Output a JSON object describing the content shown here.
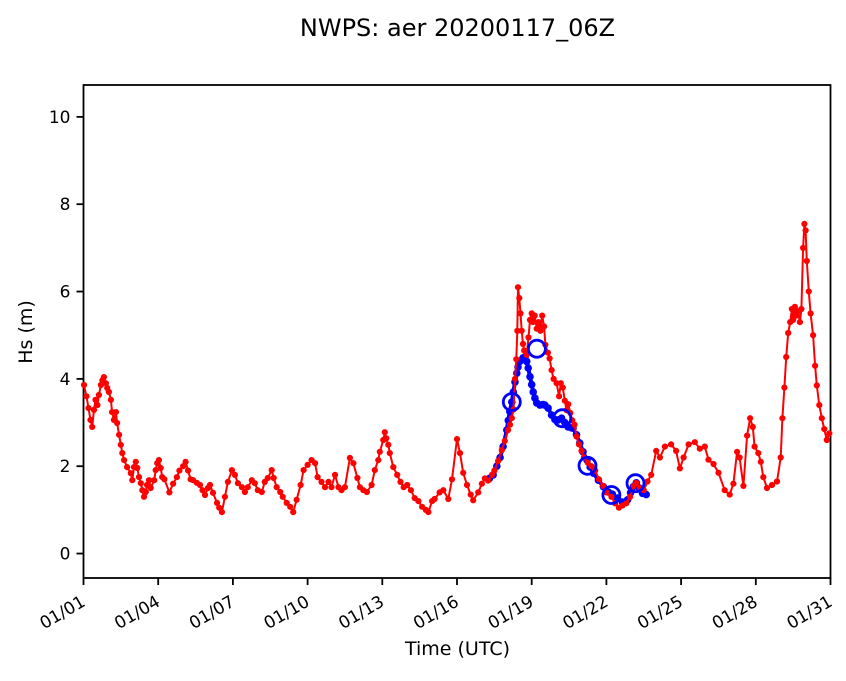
{
  "title": "NWPS: aer 20200117_06Z",
  "colors": {
    "observed": "#ff0000",
    "forecast": "#0000ff",
    "cycle_marker": "#0000ff",
    "axis": "#000000",
    "background": "#ffffff"
  },
  "chart_data": {
    "type": "line",
    "title": "NWPS: aer 20200117_06Z",
    "xlabel": "Time (UTC)",
    "ylabel": "Hs (m)",
    "grid": false,
    "legend": "none",
    "x_unit_note": "x values are days since 01/01 00:00 UTC",
    "xlim": [
      0,
      30
    ],
    "ylim": [
      -0.56,
      10.73
    ],
    "x_tick_days": [
      0,
      3,
      6,
      9,
      12,
      15,
      18,
      21,
      24,
      27,
      30
    ],
    "x_tick_labels": [
      "01/01",
      "01/04",
      "01/07",
      "01/10",
      "01/13",
      "01/16",
      "01/19",
      "01/22",
      "01/25",
      "01/28",
      "01/31"
    ],
    "x_tick_label_rotation_deg": 30,
    "y_ticks": [
      0,
      2,
      4,
      6,
      8,
      10
    ],
    "y_tick_labels": [
      "0",
      "2",
      "4",
      "6",
      "8",
      "10"
    ],
    "series": [
      {
        "name": "observed-hs",
        "color": "#ff0000",
        "marker": "dot",
        "marker_radius": 3.1,
        "line_width": 2,
        "x": [
          0.02,
          0.12,
          0.2,
          0.28,
          0.35,
          0.42,
          0.48,
          0.56,
          0.62,
          0.7,
          0.76,
          0.82,
          0.9,
          0.95,
          1.02,
          1.1,
          1.15,
          1.22,
          1.3,
          1.35,
          1.43,
          1.5,
          1.56,
          1.63,
          1.75,
          1.9,
          1.96,
          2.03,
          2.1,
          2.16,
          2.23,
          2.3,
          2.36,
          2.43,
          2.5,
          2.55,
          2.63,
          2.7,
          2.84,
          2.9,
          2.96,
          3.03,
          3.1,
          3.16,
          3.25,
          3.45,
          3.6,
          3.75,
          3.85,
          4.0,
          4.1,
          4.2,
          4.3,
          4.4,
          4.55,
          4.68,
          4.78,
          4.88,
          5.0,
          5.08,
          5.2,
          5.36,
          5.45,
          5.56,
          5.68,
          5.8,
          5.96,
          6.08,
          6.2,
          6.36,
          6.48,
          6.6,
          6.76,
          6.88,
          7.0,
          7.16,
          7.28,
          7.4,
          7.56,
          7.64,
          7.76,
          7.9,
          8.0,
          8.16,
          8.3,
          8.42,
          8.56,
          8.72,
          8.84,
          9.0,
          9.16,
          9.3,
          9.4,
          9.56,
          9.7,
          9.84,
          9.96,
          10.1,
          10.24,
          10.36,
          10.5,
          10.7,
          10.84,
          11.0,
          11.1,
          11.24,
          11.38,
          11.57,
          11.7,
          11.84,
          11.9,
          12.04,
          12.1,
          12.16,
          12.24,
          12.3,
          12.44,
          12.6,
          12.73,
          12.86,
          13.0,
          13.15,
          13.3,
          13.45,
          13.6,
          13.75,
          13.85,
          14.0,
          14.1,
          14.3,
          14.45,
          14.65,
          14.8,
          15.0,
          15.12,
          15.25,
          15.4,
          15.55,
          15.65,
          15.85,
          16.0,
          16.12,
          16.25,
          16.4,
          16.5,
          16.65,
          16.8,
          16.92,
          17.05,
          17.13,
          17.2,
          17.27,
          17.33,
          17.38,
          17.42,
          17.45,
          17.5,
          17.55,
          17.6,
          17.65,
          17.7,
          17.8,
          17.87,
          17.93,
          18.0,
          18.05,
          18.12,
          18.2,
          18.28,
          18.35,
          18.42,
          18.5,
          18.55,
          18.65,
          18.72,
          18.8,
          18.88,
          19.0,
          19.1,
          19.17,
          19.25,
          19.33,
          19.4,
          19.47,
          19.55,
          19.63,
          19.72,
          19.8,
          19.9,
          20.0,
          20.1,
          20.25,
          20.4,
          20.55,
          20.7,
          20.87,
          21.0,
          21.2,
          21.35,
          21.5,
          21.65,
          21.8,
          21.95,
          22.1,
          22.2,
          22.35,
          22.5,
          22.65,
          22.8,
          23.0,
          23.15,
          23.35,
          23.6,
          23.8,
          23.95,
          24.1,
          24.3,
          24.55,
          24.75,
          24.95,
          25.1,
          25.3,
          25.5,
          25.75,
          25.95,
          26.1,
          26.25,
          26.35,
          26.5,
          26.65,
          26.77,
          26.88,
          26.95,
          27.1,
          27.2,
          27.3,
          27.45,
          27.65,
          27.85,
          28.0,
          28.07,
          28.15,
          28.22,
          28.3,
          28.38,
          28.45,
          28.5,
          28.57,
          28.63,
          28.7,
          28.77,
          28.83,
          28.9,
          28.95,
          29.0,
          29.05,
          29.13,
          29.2,
          29.3,
          29.38,
          29.45,
          29.55,
          29.65,
          29.75,
          29.85,
          29.95
        ],
        "y": [
          3.86,
          3.6,
          3.33,
          3.06,
          2.9,
          3.29,
          3.52,
          3.4,
          3.63,
          3.86,
          3.97,
          4.04,
          3.9,
          3.79,
          3.7,
          3.52,
          3.24,
          3.06,
          3.24,
          2.99,
          2.72,
          2.49,
          2.3,
          2.14,
          1.98,
          1.84,
          1.68,
          1.98,
          2.1,
          1.96,
          1.75,
          1.61,
          1.45,
          1.3,
          1.41,
          1.57,
          1.68,
          1.5,
          1.68,
          1.91,
          2.07,
          2.14,
          1.96,
          1.75,
          1.7,
          1.4,
          1.6,
          1.75,
          1.9,
          2.0,
          2.1,
          1.9,
          1.7,
          1.68,
          1.62,
          1.57,
          1.45,
          1.34,
          1.5,
          1.57,
          1.39,
          1.16,
          1.05,
          0.95,
          1.3,
          1.64,
          1.91,
          1.8,
          1.61,
          1.52,
          1.41,
          1.52,
          1.68,
          1.61,
          1.45,
          1.41,
          1.64,
          1.73,
          1.91,
          1.73,
          1.52,
          1.41,
          1.3,
          1.16,
          1.07,
          0.95,
          1.23,
          1.57,
          1.91,
          2.03,
          2.14,
          2.07,
          1.75,
          1.64,
          1.52,
          1.64,
          1.52,
          1.8,
          1.52,
          1.45,
          1.52,
          2.19,
          2.07,
          1.73,
          1.52,
          1.45,
          1.41,
          1.57,
          1.91,
          2.14,
          2.33,
          2.6,
          2.78,
          2.64,
          2.49,
          2.3,
          1.98,
          1.8,
          1.64,
          1.52,
          1.57,
          1.45,
          1.27,
          1.2,
          1.07,
          1.0,
          0.95,
          1.2,
          1.25,
          1.4,
          1.45,
          1.25,
          1.7,
          2.62,
          2.3,
          1.85,
          1.57,
          1.35,
          1.22,
          1.4,
          1.6,
          1.72,
          1.67,
          1.8,
          1.9,
          2.12,
          2.37,
          2.58,
          2.83,
          2.95,
          3.1,
          3.3,
          4.0,
          4.45,
          5.1,
          6.1,
          5.85,
          5.5,
          5.1,
          4.8,
          4.65,
          4.55,
          4.95,
          5.35,
          5.5,
          5.3,
          5.45,
          5.15,
          5.3,
          5.1,
          5.45,
          5.2,
          4.78,
          4.6,
          4.47,
          4.2,
          4.0,
          3.9,
          3.6,
          3.9,
          3.8,
          3.5,
          3.28,
          3.42,
          3.22,
          3.05,
          2.95,
          2.68,
          2.5,
          2.35,
          2.2,
          2.08,
          2.0,
          1.9,
          1.7,
          1.55,
          1.4,
          1.3,
          1.15,
          1.05,
          1.1,
          1.15,
          1.3,
          1.55,
          1.62,
          1.5,
          1.45,
          1.65,
          1.8,
          2.35,
          2.2,
          2.45,
          2.5,
          2.35,
          1.95,
          2.2,
          2.5,
          2.55,
          2.4,
          2.45,
          2.15,
          2.05,
          1.85,
          1.45,
          1.35,
          1.6,
          2.33,
          2.2,
          1.55,
          2.7,
          3.1,
          2.9,
          2.45,
          2.3,
          2.1,
          1.75,
          1.5,
          1.57,
          1.65,
          2.2,
          3.1,
          3.8,
          4.5,
          5.05,
          5.3,
          5.6,
          5.35,
          5.65,
          5.45,
          5.55,
          5.3,
          5.6,
          7.0,
          7.55,
          7.4,
          6.7,
          6.0,
          5.5,
          5.0,
          4.3,
          3.85,
          3.4,
          3.1,
          2.85,
          2.6,
          2.75
        ]
      },
      {
        "name": "model-forecast-hs",
        "color": "#0000ff",
        "marker": "dot",
        "marker_radius": 3.8,
        "line_width": 4,
        "x": [
          16.3,
          16.45,
          16.6,
          16.73,
          16.85,
          17.0,
          17.06,
          17.12,
          17.2,
          17.26,
          17.33,
          17.4,
          17.45,
          17.52,
          17.65,
          17.73,
          17.8,
          17.86,
          17.93,
          18.0,
          18.06,
          18.13,
          18.2,
          18.33,
          18.45,
          18.53,
          18.66,
          18.8,
          18.93,
          19.06,
          19.2,
          19.33,
          19.46,
          19.6,
          19.66,
          19.8,
          19.93,
          20.06,
          20.22,
          20.35,
          20.48,
          20.68,
          20.88,
          21.08,
          21.24,
          21.44,
          21.64,
          21.85,
          21.97,
          22.08,
          22.2,
          22.33,
          22.45,
          22.6
        ],
        "y": [
          1.72,
          1.8,
          2.0,
          2.2,
          2.45,
          2.83,
          3.05,
          3.25,
          3.47,
          3.7,
          3.93,
          4.13,
          4.27,
          4.4,
          4.48,
          4.5,
          4.4,
          4.25,
          4.05,
          3.87,
          3.7,
          3.56,
          3.45,
          3.4,
          3.41,
          3.4,
          3.33,
          3.17,
          3.07,
          3.06,
          3.1,
          3.0,
          2.9,
          2.88,
          2.87,
          2.72,
          2.53,
          2.33,
          2.14,
          1.98,
          1.84,
          1.68,
          1.53,
          1.41,
          1.36,
          1.27,
          1.18,
          1.23,
          1.39,
          1.53,
          1.62,
          1.5,
          1.38,
          1.35
        ]
      },
      {
        "name": "forecast-cycle-markers",
        "color": "#0000ff",
        "marker": "open-circle",
        "marker_radius": 8.5,
        "line_width": 0,
        "x": [
          17.2,
          18.21,
          19.23,
          20.24,
          21.2,
          22.17
        ],
        "y": [
          3.47,
          4.69,
          3.1,
          2.01,
          1.34,
          1.61
        ]
      }
    ]
  }
}
